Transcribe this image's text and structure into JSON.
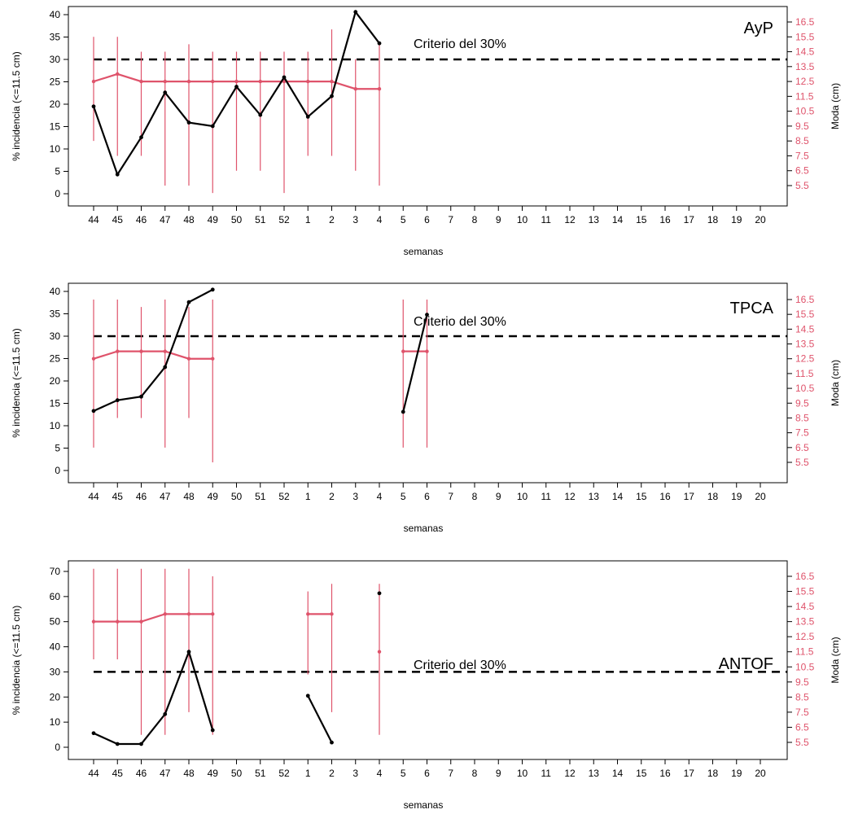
{
  "colors": {
    "incidence_line": "#000000",
    "moda_line": "#df536b",
    "criterion_line": "#000000",
    "right_axis_text": "#df536b",
    "background": "#ffffff"
  },
  "shared": {
    "xlabel": "semanas",
    "ylabel_left": "% incidencia (<=11.5 cm)",
    "ylabel_right": "Moda (cm)",
    "criterion_label": "Criterio del 30%",
    "x_categories": [
      "44",
      "45",
      "46",
      "47",
      "48",
      "49",
      "50",
      "51",
      "52",
      "1",
      "2",
      "3",
      "4",
      "5",
      "6",
      "7",
      "8",
      "9",
      "10",
      "11",
      "12",
      "13",
      "14",
      "15",
      "16",
      "17",
      "18",
      "19",
      "20"
    ],
    "right_ticks": [
      "5.5",
      "6.5",
      "7.5",
      "8.5",
      "9.5",
      "10.5",
      "11.5",
      "12.5",
      "13.5",
      "14.5",
      "15.5",
      "16.5"
    ]
  },
  "chart_data": [
    {
      "type": "line",
      "title": "AyP",
      "categories": [
        "44",
        "45",
        "46",
        "47",
        "48",
        "49",
        "50",
        "51",
        "52",
        "1",
        "2",
        "3",
        "4",
        "5",
        "6",
        "7",
        "8",
        "9",
        "10",
        "11",
        "12",
        "13",
        "14",
        "15",
        "16",
        "17",
        "18",
        "19",
        "20"
      ],
      "xlabel": "semanas",
      "ylabel": "% incidencia (<=11.5 cm)",
      "ylabel_right": "Moda (cm)",
      "ylim": [
        0,
        40
      ],
      "y_ticks": [
        "0",
        "5",
        "10",
        "15",
        "20",
        "25",
        "30",
        "35",
        "40"
      ],
      "ylim_right": [
        4.5,
        17.5
      ],
      "criterion": 30,
      "criterion_label": "Criterio del 30%",
      "series": [
        {
          "axis": "left",
          "values": [
            19.5,
            4.3,
            12.6,
            22.6,
            15.9,
            15.1,
            23.9,
            17.6,
            26,
            17.2,
            21.8,
            40.6,
            33.6,
            null,
            null,
            null,
            null,
            null,
            null,
            null,
            null,
            null,
            null,
            null,
            null,
            null,
            null,
            null,
            null
          ]
        },
        {
          "axis": "right",
          "values": [
            12.5,
            13,
            12.5,
            12.5,
            12.5,
            12.5,
            12.5,
            12.5,
            12.5,
            12.5,
            12.5,
            12,
            12,
            null,
            null,
            null,
            null,
            null,
            null,
            null,
            null,
            null,
            null,
            null,
            null,
            null,
            null,
            null,
            null
          ],
          "lower": [
            8.5,
            7.5,
            7.5,
            5.5,
            5.5,
            5,
            6.5,
            6.5,
            5,
            7.5,
            7.5,
            6.5,
            5.5,
            null,
            null,
            null,
            null,
            null,
            null,
            null,
            null,
            null,
            null,
            null,
            null,
            null,
            null,
            null,
            null
          ],
          "upper": [
            15.5,
            15.5,
            14.5,
            14.5,
            15,
            14.5,
            14.5,
            14.5,
            14.5,
            14.5,
            16,
            14,
            15,
            null,
            null,
            null,
            null,
            null,
            null,
            null,
            null,
            null,
            null,
            null,
            null,
            null,
            null,
            null,
            null
          ]
        }
      ]
    },
    {
      "type": "line",
      "title": "TPCA",
      "categories": [
        "44",
        "45",
        "46",
        "47",
        "48",
        "49",
        "50",
        "51",
        "52",
        "1",
        "2",
        "3",
        "4",
        "5",
        "6",
        "7",
        "8",
        "9",
        "10",
        "11",
        "12",
        "13",
        "14",
        "15",
        "16",
        "17",
        "18",
        "19",
        "20"
      ],
      "xlabel": "semanas",
      "ylabel": "% incidencia (<=11.5 cm)",
      "ylabel_right": "Moda (cm)",
      "ylim": [
        0,
        40
      ],
      "y_ticks": [
        "0",
        "5",
        "10",
        "15",
        "20",
        "25",
        "30",
        "35",
        "40"
      ],
      "ylim_right": [
        4.5,
        17.5
      ],
      "criterion": 30,
      "criterion_label": "Criterio del 30%",
      "series": [
        {
          "axis": "left",
          "values": [
            13.3,
            15.7,
            16.5,
            23.1,
            37.6,
            40.4,
            null,
            null,
            null,
            null,
            null,
            null,
            null,
            13.1,
            34.8,
            null,
            null,
            null,
            null,
            null,
            null,
            null,
            null,
            null,
            null,
            null,
            null,
            null,
            null
          ]
        },
        {
          "axis": "right",
          "values": [
            12.5,
            13,
            13,
            13,
            12.5,
            12.5,
            null,
            null,
            null,
            null,
            null,
            null,
            null,
            13,
            13,
            null,
            null,
            null,
            null,
            null,
            null,
            null,
            null,
            null,
            null,
            null,
            null,
            null,
            null
          ],
          "lower": [
            6.5,
            8.5,
            8.5,
            6.5,
            8.5,
            5.5,
            null,
            null,
            null,
            null,
            null,
            null,
            null,
            6.5,
            6.5,
            null,
            null,
            null,
            null,
            null,
            null,
            null,
            null,
            null,
            null,
            null,
            null,
            null,
            null
          ],
          "upper": [
            16.5,
            16.5,
            16,
            16.5,
            16,
            16.5,
            null,
            null,
            null,
            null,
            null,
            null,
            null,
            16.5,
            16.5,
            null,
            null,
            null,
            null,
            null,
            null,
            null,
            null,
            null,
            null,
            null,
            null,
            null,
            null
          ]
        }
      ]
    },
    {
      "type": "line",
      "title": "ANTOF",
      "categories": [
        "44",
        "45",
        "46",
        "47",
        "48",
        "49",
        "50",
        "51",
        "52",
        "1",
        "2",
        "3",
        "4",
        "5",
        "6",
        "7",
        "8",
        "9",
        "10",
        "11",
        "12",
        "13",
        "14",
        "15",
        "16",
        "17",
        "18",
        "19",
        "20"
      ],
      "xlabel": "semanas",
      "ylabel": "% incidencia (<=11.5 cm)",
      "ylabel_right": "Moda (cm)",
      "ylim": [
        0,
        70
      ],
      "y_ticks": [
        "0",
        "10",
        "20",
        "30",
        "40",
        "50",
        "60",
        "70"
      ],
      "ylim_right": [
        4.5,
        17.5
      ],
      "criterion": 30,
      "criterion_label": "Criterio del 30%",
      "series": [
        {
          "axis": "left",
          "values": [
            5.6,
            1.3,
            1.3,
            13.2,
            38,
            6.8,
            null,
            null,
            null,
            20.5,
            1.9,
            null,
            61.3,
            null,
            null,
            null,
            null,
            null,
            null,
            null,
            null,
            null,
            null,
            null,
            null,
            null,
            null,
            null,
            null
          ]
        },
        {
          "axis": "right",
          "values": [
            13.5,
            13.5,
            13.5,
            14,
            14,
            14,
            null,
            null,
            null,
            14,
            14,
            null,
            11.5,
            null,
            null,
            null,
            null,
            null,
            null,
            null,
            null,
            null,
            null,
            null,
            null,
            null,
            null,
            null,
            null
          ],
          "lower": [
            11,
            11,
            6,
            6,
            7.5,
            6,
            null,
            null,
            null,
            10,
            7.5,
            null,
            6,
            null,
            null,
            null,
            null,
            null,
            null,
            null,
            null,
            null,
            null,
            null,
            null,
            null,
            null,
            null,
            null
          ],
          "upper": [
            17,
            17,
            17,
            17,
            17,
            16.5,
            null,
            null,
            null,
            15.5,
            16,
            null,
            16,
            null,
            null,
            null,
            null,
            null,
            null,
            null,
            null,
            null,
            null,
            null,
            null,
            null,
            null,
            null,
            null
          ]
        }
      ]
    }
  ]
}
